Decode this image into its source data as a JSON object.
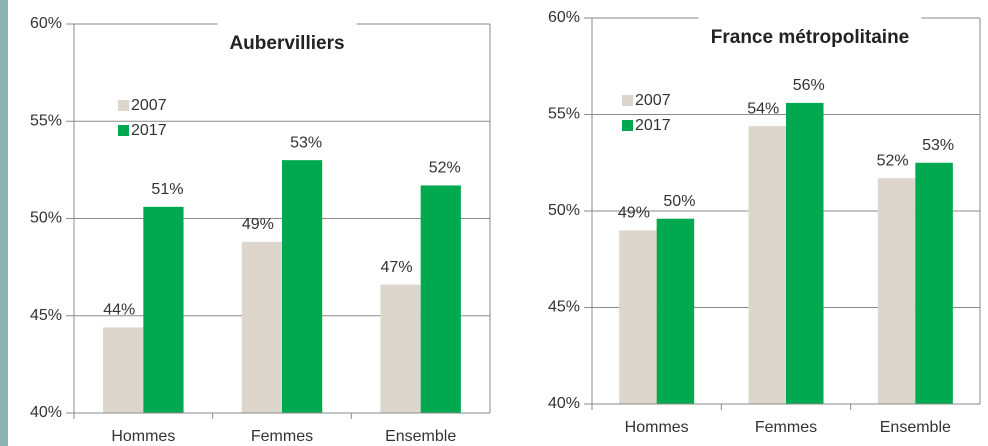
{
  "chart_data": [
    {
      "type": "bar",
      "title": "Aubervilliers",
      "categories": [
        "Hommes",
        "Femmes",
        "Ensemble"
      ],
      "series": [
        {
          "name": "2007",
          "color": "#ddd6cc",
          "values": [
            44.4,
            48.8,
            46.6
          ],
          "value_labels": [
            "44%",
            "49%",
            "47%"
          ]
        },
        {
          "name": "2017",
          "color": "#00a84f",
          "values": [
            50.6,
            53.0,
            51.7
          ],
          "value_labels": [
            "51%",
            "53%",
            "52%"
          ]
        }
      ],
      "ylim": [
        40,
        60
      ],
      "yticks": [
        {
          "value": 40,
          "label": "40%"
        },
        {
          "value": 45,
          "label": "45%"
        },
        {
          "value": 50,
          "label": "50%"
        },
        {
          "value": 55,
          "label": "55%"
        },
        {
          "value": 60,
          "label": "60%"
        }
      ],
      "grid": true,
      "legend": "upper left"
    },
    {
      "type": "bar",
      "title": "France métropolitaine",
      "categories": [
        "Hommes",
        "Femmes",
        "Ensemble"
      ],
      "series": [
        {
          "name": "2007",
          "color": "#ddd6cc",
          "values": [
            49.0,
            54.4,
            51.7
          ],
          "value_labels": [
            "49%",
            "54%",
            "52%"
          ]
        },
        {
          "name": "2017",
          "color": "#00a84f",
          "values": [
            49.6,
            55.6,
            52.5
          ],
          "value_labels": [
            "50%",
            "56%",
            "53%"
          ]
        }
      ],
      "ylim": [
        40,
        60
      ],
      "yticks": [
        {
          "value": 40,
          "label": "40%"
        },
        {
          "value": 45,
          "label": "45%"
        },
        {
          "value": 50,
          "label": "50%"
        },
        {
          "value": 55,
          "label": "55%"
        },
        {
          "value": 60,
          "label": "60%"
        }
      ],
      "grid": true,
      "legend": "upper left"
    }
  ]
}
